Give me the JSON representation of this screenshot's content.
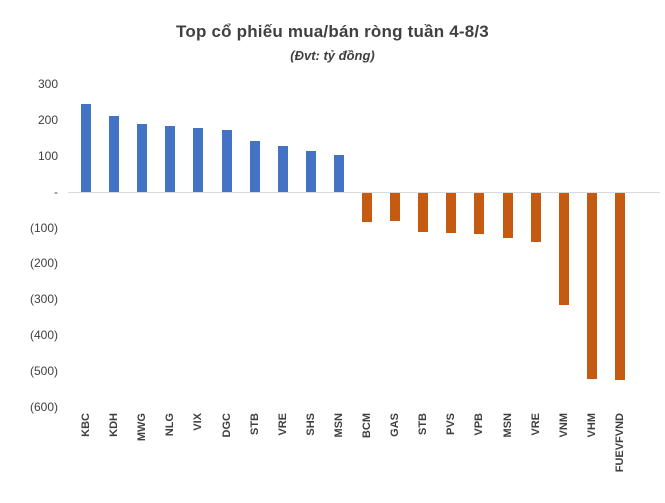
{
  "header": {
    "title": "Top cổ phiếu mua/bán ròng tuần 4-8/3",
    "subtitle": "(Đvt: tỷ đồng)"
  },
  "chart_data": {
    "type": "bar",
    "title": "Top cổ phiếu mua/bán ròng tuần 4-8/3",
    "subtitle": "(Đvt: tỷ đồng)",
    "unit": "tỷ đồng",
    "categories": [
      "KBC",
      "KDH",
      "MWG",
      "NLG",
      "VIX",
      "DGC",
      "STB",
      "VRE",
      "SHS",
      "MSN",
      "BCM",
      "GAS",
      "STB",
      "PVS",
      "VPB",
      "MSN",
      "VRE",
      "VNM",
      "VHM",
      "FUEVFVND"
    ],
    "values": [
      245,
      212,
      188,
      182,
      177,
      173,
      142,
      127,
      113,
      102,
      -82,
      -80,
      -110,
      -112,
      -115,
      -125,
      -138,
      -314,
      -520,
      -523
    ],
    "ylim": [
      -600,
      300
    ],
    "y_ticks": [
      {
        "value": 300,
        "label": "300"
      },
      {
        "value": 200,
        "label": "200"
      },
      {
        "value": 100,
        "label": "100"
      },
      {
        "value": 0,
        "label": "-"
      },
      {
        "value": -100,
        "label": "(100)"
      },
      {
        "value": -200,
        "label": "(200)"
      },
      {
        "value": -300,
        "label": "(300)"
      },
      {
        "value": -400,
        "label": "(400)"
      },
      {
        "value": -500,
        "label": "(500)"
      },
      {
        "value": -600,
        "label": "(600)"
      }
    ],
    "grid": false,
    "legend": "none",
    "positive_color": "#4472C4",
    "negative_color": "#C55A11",
    "axis_line_color": "#d9d9d9",
    "text_color": "#404040"
  }
}
